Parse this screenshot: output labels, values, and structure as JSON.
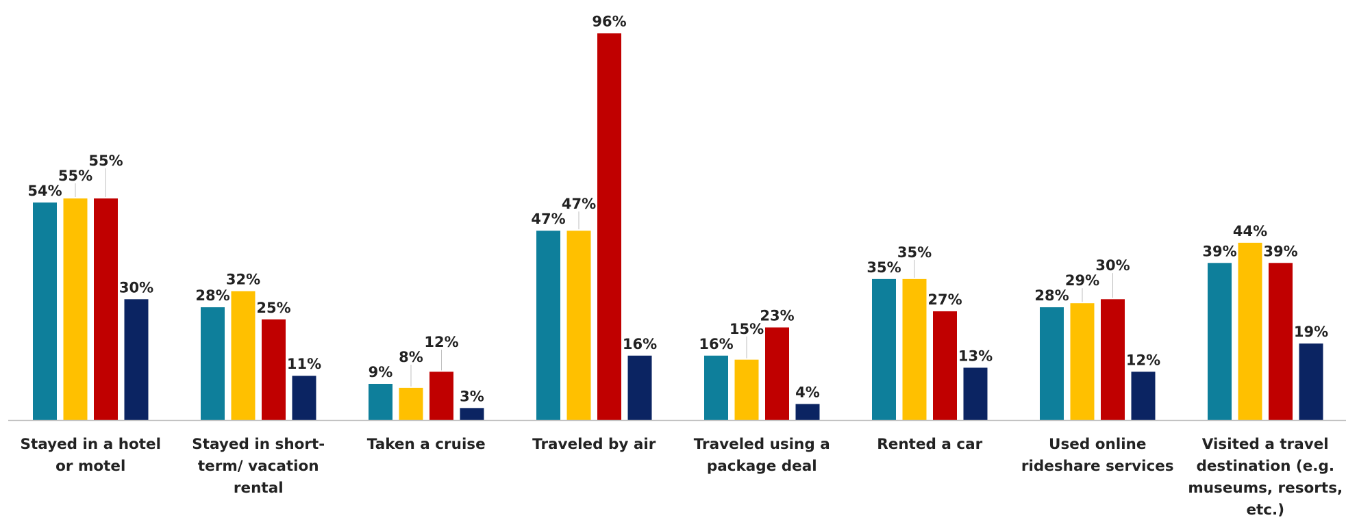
{
  "chart_data": {
    "type": "bar",
    "title": "",
    "xlabel": "",
    "ylabel": "",
    "ylim": [
      0,
      100
    ],
    "grid": false,
    "legend": "none",
    "categories": [
      [
        "Stayed in a hotel",
        "or motel"
      ],
      [
        "Stayed in short-",
        "term/ vacation",
        "rental"
      ],
      [
        "Taken a cruise"
      ],
      [
        "Traveled by air"
      ],
      [
        "Traveled using a",
        "package deal"
      ],
      [
        "Rented a car"
      ],
      [
        "Used online",
        "rideshare services"
      ],
      [
        "Visited a travel",
        "destination (e.g.",
        "museums, resorts,",
        "etc.)"
      ]
    ],
    "series": [
      {
        "color": "#0e7f9b",
        "values": [
          54,
          28,
          9,
          47,
          16,
          35,
          28,
          39
        ],
        "labels": [
          "54%",
          "28%",
          "9%",
          "47%",
          "16%",
          "35%",
          "28%",
          "39%"
        ]
      },
      {
        "color": "#ffc000",
        "values": [
          55,
          32,
          8,
          47,
          15,
          35,
          29,
          44
        ],
        "labels": [
          "55%",
          "32%",
          "8%",
          "47%",
          "15%",
          "35%",
          "29%",
          "44%"
        ]
      },
      {
        "color": "#c00000",
        "values": [
          55,
          25,
          12,
          96,
          23,
          27,
          30,
          39
        ],
        "labels": [
          "55%",
          "25%",
          "12%",
          "96%",
          "23%",
          "27%",
          "30%",
          "39%"
        ]
      },
      {
        "color": "#0b2462",
        "values": [
          30,
          11,
          3,
          16,
          4,
          13,
          12,
          19
        ],
        "labels": [
          "30%",
          "11%",
          "3%",
          "16%",
          "4%",
          "13%",
          "12%",
          "19%"
        ]
      }
    ],
    "axis_color": "#bfbfbf"
  }
}
